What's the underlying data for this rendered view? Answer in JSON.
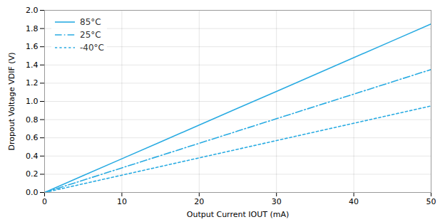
{
  "chart_data": {
    "type": "line",
    "xlabel": "Output Current IOUT (mA)",
    "ylabel": "Dropout Voltage VDIF (V)",
    "x": [
      0,
      5,
      10,
      15,
      20,
      25,
      30,
      35,
      40,
      45,
      50
    ],
    "series": [
      {
        "name": "85°C",
        "line_style": "solid",
        "values": [
          0,
          0.185,
          0.37,
          0.555,
          0.74,
          0.925,
          1.11,
          1.295,
          1.48,
          1.665,
          1.85
        ]
      },
      {
        "name": "25°C",
        "line_style": "dashdot",
        "values": [
          0,
          0.135,
          0.27,
          0.405,
          0.54,
          0.675,
          0.81,
          0.945,
          1.08,
          1.215,
          1.35
        ]
      },
      {
        "name": "-40°C",
        "line_style": "dotted",
        "values": [
          0,
          0.095,
          0.19,
          0.285,
          0.38,
          0.475,
          0.57,
          0.665,
          0.76,
          0.855,
          0.95
        ]
      }
    ],
    "color": "#29ABE2",
    "xlim": [
      0,
      50
    ],
    "ylim": [
      0,
      2
    ],
    "xticks": [
      0,
      10,
      20,
      30,
      40,
      50
    ],
    "yticks": [
      {
        "value": 0,
        "label": "0.0"
      },
      0.2,
      0.4,
      0.6,
      0.8,
      {
        "value": 1,
        "label": "1.0"
      },
      1.2,
      1.4,
      1.6,
      1.8,
      {
        "value": 2,
        "label": "2.0"
      }
    ],
    "grid": true,
    "legend": "upper left"
  }
}
